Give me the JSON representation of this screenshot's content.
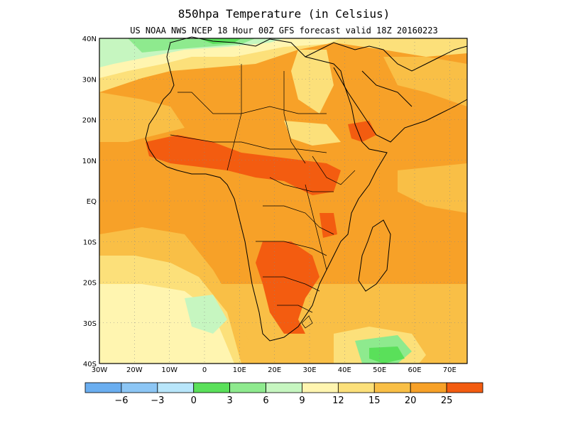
{
  "title": "850hpa  Temperature (in Celsius)",
  "subtitle": "US NOAA NWS NCEP 18 Hour 00Z GFS forecast valid 18Z 20160223",
  "map": {
    "lon_range": [
      -30,
      75
    ],
    "lat_range": [
      -40,
      40
    ],
    "lat_ticks": [
      {
        "value": 40,
        "label": "40N"
      },
      {
        "value": 30,
        "label": "30N"
      },
      {
        "value": 20,
        "label": "20N"
      },
      {
        "value": 10,
        "label": "10N"
      },
      {
        "value": 0,
        "label": "EQ"
      },
      {
        "value": -10,
        "label": "10S"
      },
      {
        "value": -20,
        "label": "20S"
      },
      {
        "value": -30,
        "label": "30S"
      },
      {
        "value": -40,
        "label": "40S"
      }
    ],
    "lon_ticks": [
      {
        "value": -30,
        "label": "30W"
      },
      {
        "value": -20,
        "label": "20W"
      },
      {
        "value": -10,
        "label": "10W"
      },
      {
        "value": 0,
        "label": "0"
      },
      {
        "value": 10,
        "label": "10E"
      },
      {
        "value": 20,
        "label": "20E"
      },
      {
        "value": 30,
        "label": "30E"
      },
      {
        "value": 40,
        "label": "40E"
      },
      {
        "value": 50,
        "label": "50E"
      },
      {
        "value": 60,
        "label": "60E"
      },
      {
        "value": 70,
        "label": "70E"
      }
    ],
    "gridlines": "dotted",
    "colors": {
      "below_-6": "#6aaef0",
      "c_-6_-3": "#8cc6f5",
      "c_-3_0": "#b8e6fb",
      "c_0_3": "#5ae05a",
      "c_3_6": "#8eea8e",
      "c_6_9": "#c6f6c0",
      "c_9_12": "#fff5b0",
      "c_12_15": "#fce07a",
      "c_15_20": "#f9bf46",
      "c_20_25": "#f7a128",
      "above_25": "#f35c10"
    }
  },
  "colorbar": {
    "colors": [
      "#6aaef0",
      "#8cc6f5",
      "#b8e6fb",
      "#5ae05a",
      "#8eea8e",
      "#c6f6c0",
      "#fff5b0",
      "#fce07a",
      "#f9bf46",
      "#f7a128",
      "#f35c10"
    ],
    "labels": [
      "−6",
      "−3",
      "0",
      "3",
      "6",
      "9",
      "12",
      "15",
      "20",
      "25"
    ]
  }
}
